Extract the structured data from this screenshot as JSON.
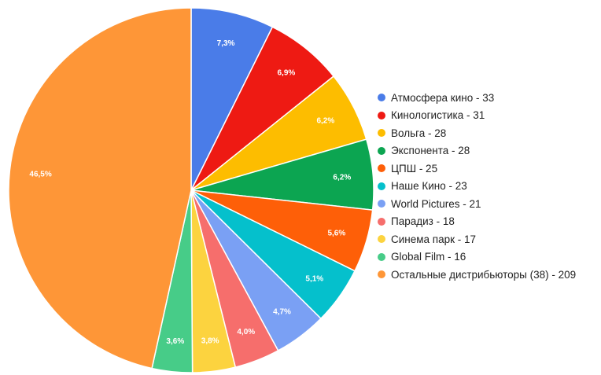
{
  "chart_data": {
    "type": "pie",
    "legend_position": "right",
    "slices": [
      {
        "label": "Атмосфера кино - 33",
        "value": 33,
        "percent_label": "7,3%",
        "color": "#4a7ce8"
      },
      {
        "label": "Кинологистика - 31",
        "value": 31,
        "percent_label": "6,9%",
        "color": "#ee1a13"
      },
      {
        "label": "Вольга  - 28",
        "value": 28,
        "percent_label": "6,2%",
        "color": "#fdbd00"
      },
      {
        "label": "Экспонента - 28",
        "value": 28,
        "percent_label": "6,2%",
        "color": "#0ca551"
      },
      {
        "label": "ЦПШ - 25",
        "value": 25,
        "percent_label": "5,6%",
        "color": "#fe5f08"
      },
      {
        "label": "Наше Кино - 23",
        "value": 23,
        "percent_label": "5,1%",
        "color": "#05c0cc"
      },
      {
        "label": "World Pictures - 21",
        "value": 21,
        "percent_label": "4,7%",
        "color": "#7aa0f4"
      },
      {
        "label": "Парадиз - 18",
        "value": 18,
        "percent_label": "4,0%",
        "color": "#f66e6c"
      },
      {
        "label": "Синема парк - 17",
        "value": 17,
        "percent_label": "3,8%",
        "color": "#fcd33f"
      },
      {
        "label": "Global Film - 16",
        "value": 16,
        "percent_label": "3,6%",
        "color": "#47cc88"
      },
      {
        "label": "Остальные дистрибьюторы (38) - 209",
        "value": 209,
        "percent_label": "46,5%",
        "color": "#fe9637"
      }
    ]
  }
}
